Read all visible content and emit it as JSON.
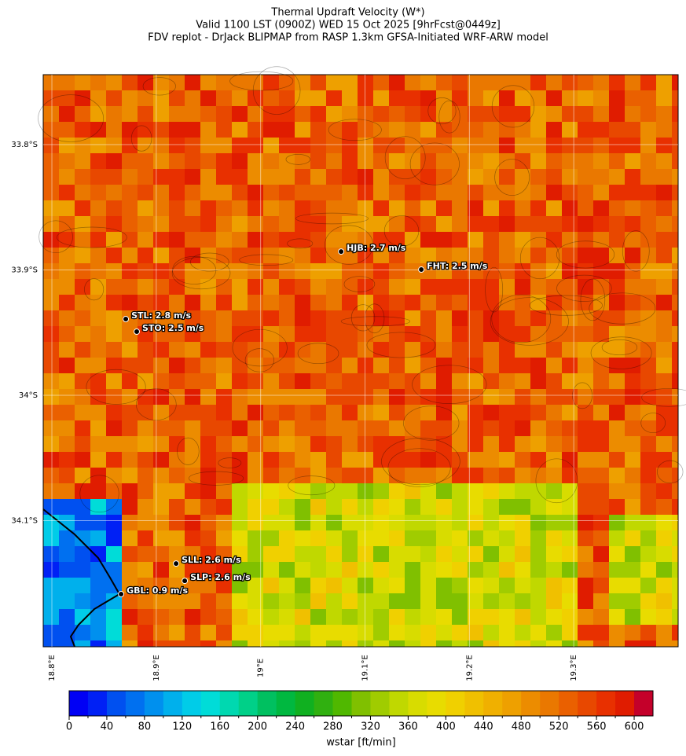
{
  "map": {
    "title": [
      "Thermal Updraft Velocity (W*)",
      "Valid 1100 LST (0900Z) WED 15 Oct 2025 [9hrFcst@0449z]",
      "FDV replot - DrJack BLIPMAP from RASP 1.3km GFSA-Initiated WRF-ARW model"
    ],
    "xlim": [
      18.7917,
      19.4
    ],
    "ylim": [
      -34.2006,
      -33.7442
    ],
    "xticks": [
      {
        "value": 18.8,
        "label": "18.8°E"
      },
      {
        "value": 18.9,
        "label": "18.9°E"
      },
      {
        "value": 19.0,
        "label": "19°E"
      },
      {
        "value": 19.1,
        "label": "19.1°E"
      },
      {
        "value": 19.2,
        "label": "19.2°E"
      },
      {
        "value": 19.3,
        "label": "19.3°E"
      }
    ],
    "yticks": [
      {
        "value": -33.8,
        "label": "33.8°S"
      },
      {
        "value": -33.9,
        "label": "33.9°S"
      },
      {
        "value": -34.0,
        "label": "34°S"
      },
      {
        "value": -34.1,
        "label": "34.1°S"
      }
    ],
    "grid": true,
    "stations": [
      {
        "label": "HJB: 2.7 m/s",
        "lon": 19.0771,
        "lat": -33.8853
      },
      {
        "label": "FHT: 2.5 m/s",
        "lon": 19.1539,
        "lat": -33.8997
      },
      {
        "label": "STL: 2.8 m/s",
        "lon": 18.8708,
        "lat": -33.9392
      },
      {
        "label": "STO: 2.5 m/s",
        "lon": 18.8813,
        "lat": -33.9492
      },
      {
        "label": "SLL: 2.6 m/s",
        "lon": 18.919,
        "lat": -34.1342
      },
      {
        "label": "SLP: 2.6 m/s",
        "lon": 18.9273,
        "lat": -34.148
      },
      {
        "label": "GBL: 0.9 m/s",
        "lon": 18.8663,
        "lat": -34.1586
      }
    ]
  },
  "colorbar": {
    "label": "wstar [ft/min]",
    "range": [
      0,
      620
    ],
    "ticks": [
      0,
      40,
      80,
      120,
      160,
      200,
      240,
      280,
      320,
      360,
      400,
      440,
      480,
      520,
      560,
      600
    ],
    "colors": [
      "#0000f5",
      "#0020f5",
      "#0050f0",
      "#0070f0",
      "#0090ee",
      "#00b0ec",
      "#00cce8",
      "#00dcd8",
      "#00d8b0",
      "#00d088",
      "#00c060",
      "#00b840",
      "#10b020",
      "#30b010",
      "#50b800",
      "#80c000",
      "#a0cc00",
      "#c0d800",
      "#d8dc00",
      "#e8dc00",
      "#f0d000",
      "#f0c000",
      "#f0b000",
      "#eea000",
      "#ec8c00",
      "#ea7800",
      "#ea6000",
      "#e84800",
      "#e83000",
      "#e01c00",
      "#c4002a"
    ]
  }
}
